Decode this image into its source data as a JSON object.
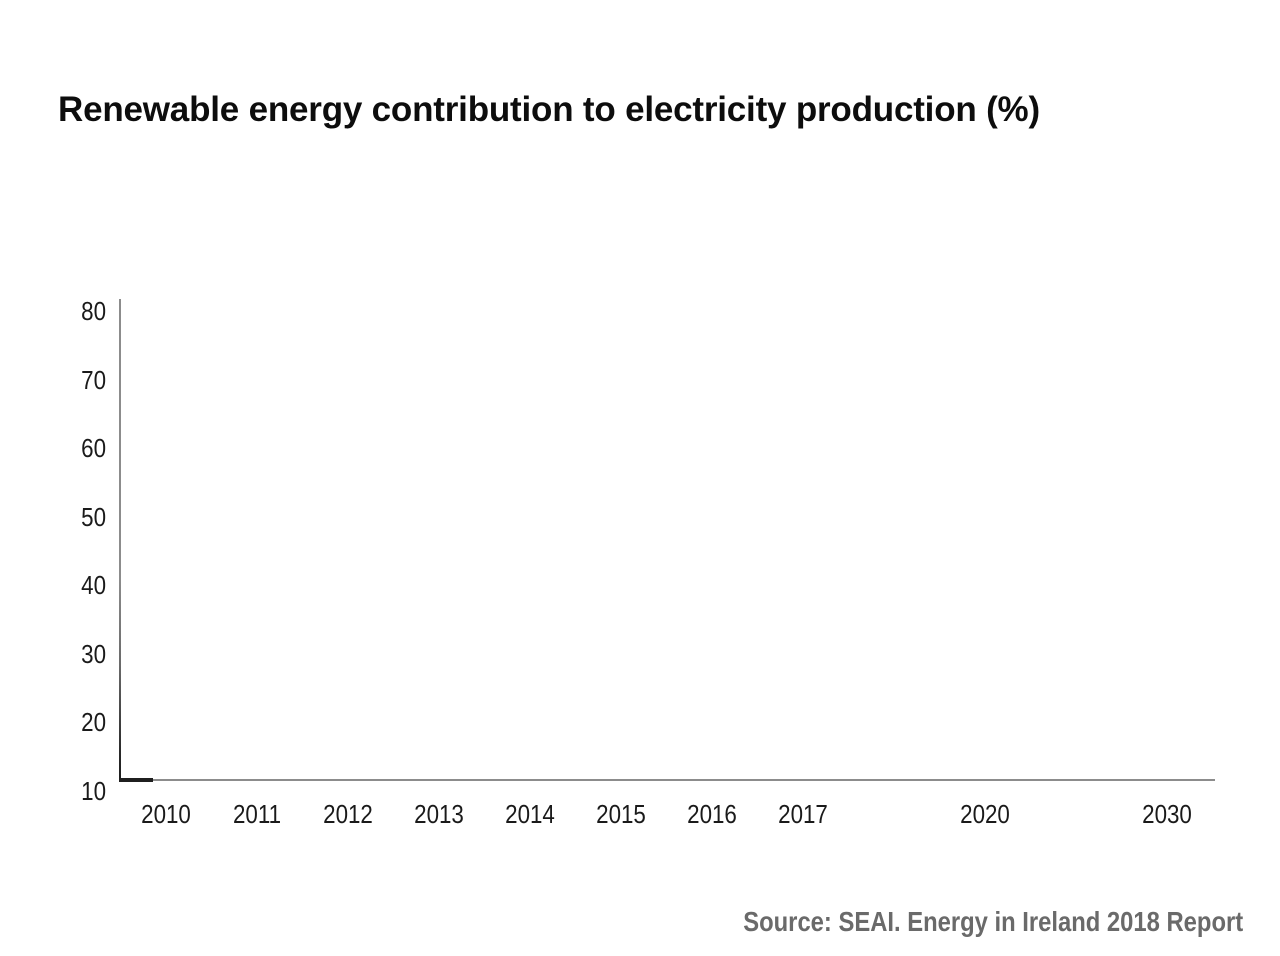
{
  "page": {
    "title": "Renewable energy contribution to electricity production (%)",
    "source": "Source: SEAI. Energy in Ireland 2018 Report"
  },
  "colors": {
    "background": "#ffffff",
    "title_text": "#0d0d0d",
    "tick_text": "#1a1a1a",
    "axis_line": "#8c8c8c",
    "axis_corner_dark": "#1f1f1f",
    "source_text": "#6a6a6a"
  },
  "chart_data": {
    "type": "line",
    "title": "Renewable energy contribution to electricity production (%)",
    "source": "Source: SEAI. Energy in Ireland 2018 Report",
    "xlabel": "",
    "ylabel": "",
    "ylim": [
      10,
      80
    ],
    "y_ticks": [
      80,
      70,
      60,
      50,
      40,
      30,
      20,
      10
    ],
    "x_ticks": [
      {
        "label": "2010",
        "slot": 0
      },
      {
        "label": "2011",
        "slot": 1
      },
      {
        "label": "2012",
        "slot": 2
      },
      {
        "label": "2013",
        "slot": 3
      },
      {
        "label": "2014",
        "slot": 4
      },
      {
        "label": "2015",
        "slot": 5
      },
      {
        "label": "2016",
        "slot": 6
      },
      {
        "label": "2017",
        "slot": 7
      },
      {
        "label": "2020",
        "slot": 9
      },
      {
        "label": "2030",
        "slot": 11
      }
    ],
    "x_slot_count": 12,
    "grid": false,
    "legend": "none",
    "series": [],
    "note": "Axes only - no data series plotted in this frame"
  }
}
